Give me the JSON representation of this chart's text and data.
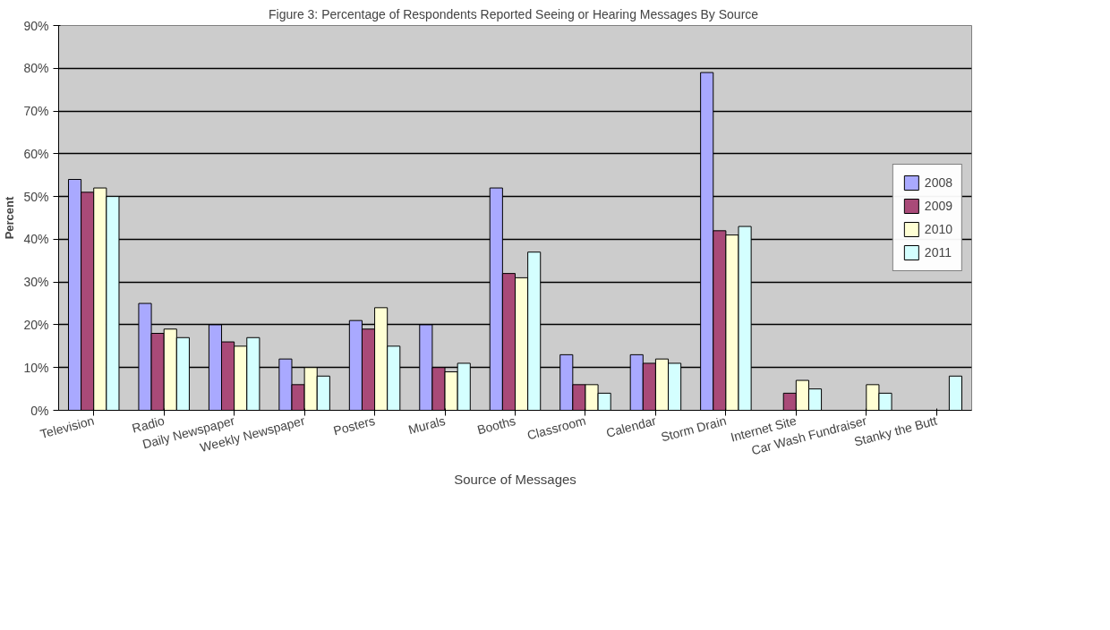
{
  "chart_data": {
    "type": "bar",
    "title": "Figure 3:  Percentage of Respondents Reported Seeing or Hearing Messages By Source",
    "xlabel": "Source of Messages",
    "ylabel": "Percent",
    "categories": [
      "Television",
      "Radio",
      "Daily Newspaper",
      "Weekly Newspaper",
      "Posters",
      "Murals",
      "Booths",
      "Classroom",
      "Calendar",
      "Storm Drain",
      "Internet Site",
      "Car Wash Fundraiser",
      "Stanky the Butt"
    ],
    "series": [
      {
        "name": "2008",
        "color": "#a9a9ff",
        "values": [
          54,
          25,
          20,
          12,
          21,
          20,
          52,
          13,
          13,
          79,
          null,
          null,
          null
        ]
      },
      {
        "name": "2009",
        "color": "#a94a78",
        "values": [
          51,
          18,
          16,
          6,
          19,
          10,
          32,
          6,
          11,
          42,
          4,
          null,
          null
        ]
      },
      {
        "name": "2010",
        "color": "#ffffd4",
        "values": [
          52,
          19,
          15,
          10,
          24,
          9,
          31,
          6,
          12,
          41,
          7,
          6,
          null
        ]
      },
      {
        "name": "2011",
        "color": "#d4ffff",
        "values": [
          50,
          17,
          17,
          8,
          15,
          11,
          37,
          4,
          11,
          43,
          5,
          4,
          8
        ]
      }
    ],
    "ylim": [
      0,
      90
    ],
    "yticks": [
      {
        "value": 0,
        "label": "0%"
      },
      {
        "value": 10,
        "label": "10%"
      },
      {
        "value": 20,
        "label": "20%"
      },
      {
        "value": 30,
        "label": "30%"
      },
      {
        "value": 40,
        "label": "40%"
      },
      {
        "value": 50,
        "label": "50%"
      },
      {
        "value": 60,
        "label": "60%"
      },
      {
        "value": 70,
        "label": "70%"
      },
      {
        "value": 80,
        "label": "80%"
      },
      {
        "value": 90,
        "label": "90%"
      }
    ],
    "grid": "y",
    "legend": "right"
  }
}
